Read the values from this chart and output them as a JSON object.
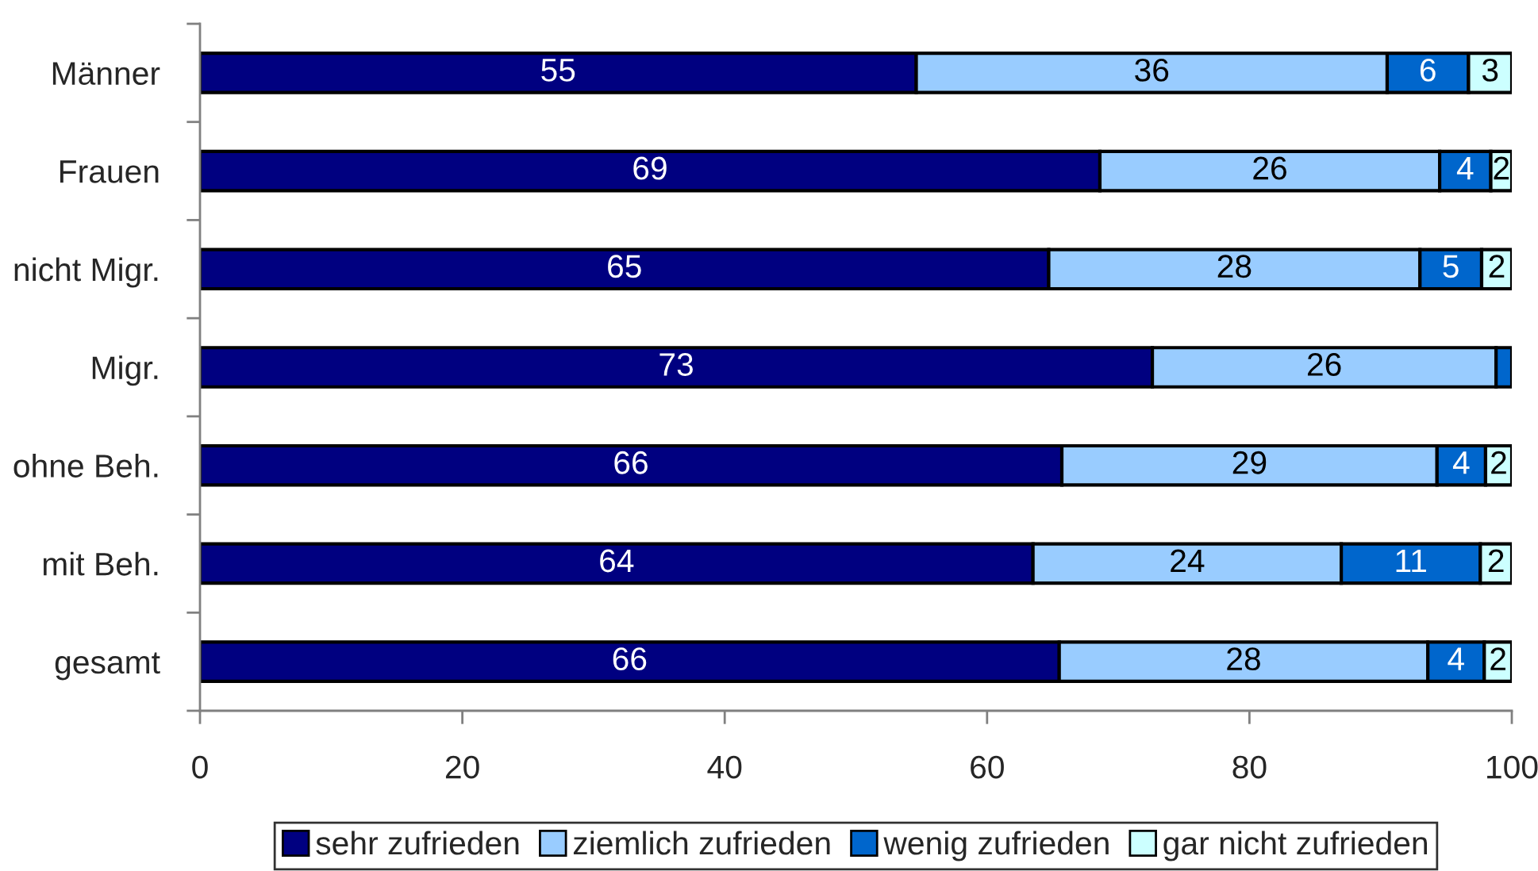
{
  "chart_data": {
    "type": "bar",
    "orientation": "horizontal",
    "stacked": true,
    "categories": [
      "Männer",
      "Frauen",
      "nicht Migr.",
      "Migr.",
      "ohne Beh.",
      "mit Beh.",
      "gesamt"
    ],
    "series": [
      {
        "name": "sehr zufrieden",
        "color": "#000080",
        "values": [
          54.6,
          68.6,
          64.7,
          72.6,
          65.7,
          63.5,
          65.5
        ],
        "value_labels": [
          "55",
          "69",
          "65",
          "73",
          "66",
          "64",
          "66"
        ]
      },
      {
        "name": "ziemlich zufrieden",
        "color": "#99ccff",
        "values": [
          35.9,
          25.9,
          28.3,
          26.2,
          28.6,
          23.5,
          28.1
        ],
        "value_labels": [
          "36",
          "26",
          "28",
          "26",
          "29",
          "24",
          "28"
        ]
      },
      {
        "name": "wenig zufrieden",
        "color": "#0066cc",
        "values": [
          6.2,
          3.9,
          4.7,
          1.2,
          3.7,
          10.6,
          4.3
        ],
        "value_labels": [
          "6",
          "4",
          "5",
          null,
          "4",
          "11",
          "4"
        ]
      },
      {
        "name": "gar nicht zufrieden",
        "color": "#ccffff",
        "values": [
          3.3,
          1.6,
          2.3,
          null,
          2.0,
          2.4,
          2.1
        ],
        "value_labels": [
          "3",
          "2",
          "2",
          null,
          "2",
          "2",
          "2"
        ]
      }
    ],
    "xlim": [
      0,
      100
    ],
    "xticks": [
      0,
      20,
      40,
      60,
      80,
      100
    ],
    "grid": false,
    "legend": "bottom"
  }
}
